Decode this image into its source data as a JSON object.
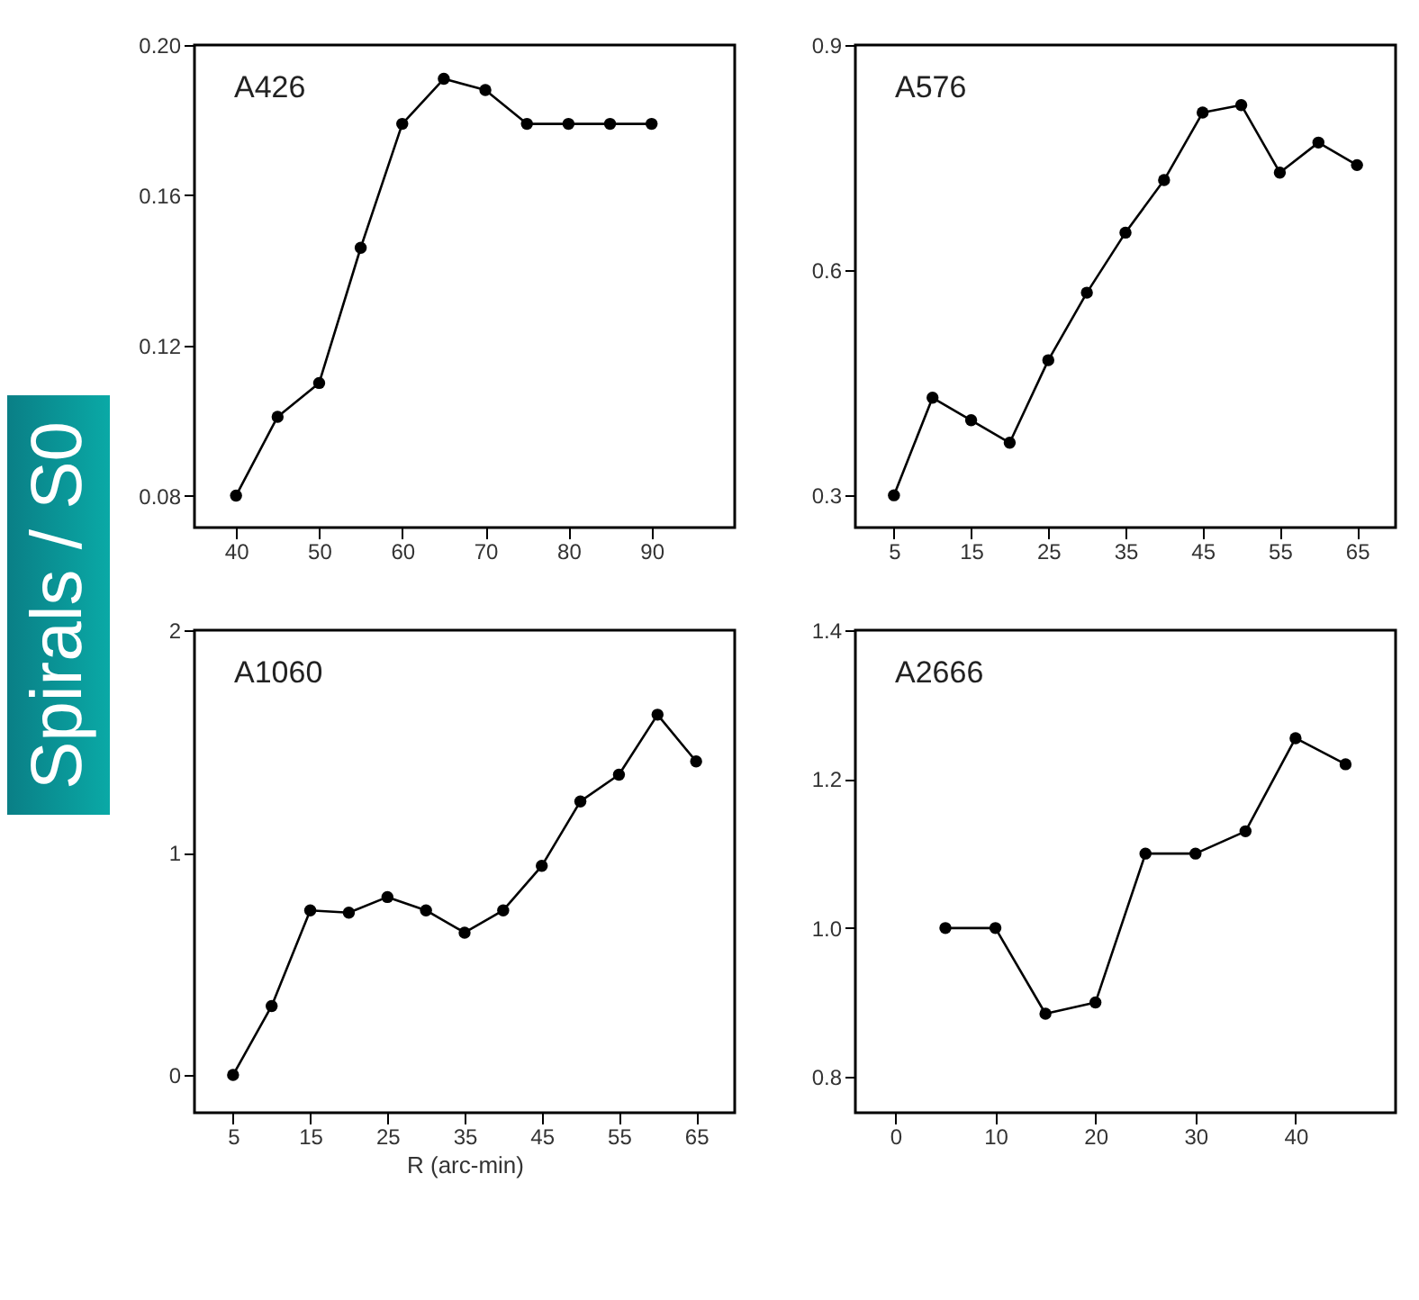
{
  "chart_data": [
    {
      "type": "line",
      "title": "A426",
      "annotations": [
        "Spirals / S0"
      ],
      "color": "#000000",
      "marker": "circle",
      "x": [
        40,
        45,
        50,
        55,
        60,
        65,
        70,
        75,
        80,
        85,
        90
      ],
      "values": [
        0.08,
        0.101,
        0.11,
        0.146,
        0.179,
        0.191,
        0.188,
        0.179,
        0.179,
        0.179,
        0.179
      ],
      "xlim": [
        35,
        100
      ],
      "xticks": [
        40,
        50,
        60,
        70,
        80,
        90
      ],
      "ylim": [
        0.0715,
        0.2
      ],
      "yticks": [
        {
          "value": 0.2,
          "label": "0.20"
        },
        0.16,
        0.12,
        0.08
      ]
    },
    {
      "type": "line",
      "title": "A576",
      "color": "#000000",
      "marker": "circle",
      "x": [
        5,
        10,
        15,
        20,
        25,
        30,
        35,
        40,
        45,
        50,
        55,
        60,
        65
      ],
      "values": [
        0.3,
        0.43,
        0.4,
        0.37,
        0.48,
        0.57,
        0.65,
        0.72,
        0.81,
        0.82,
        0.73,
        0.77,
        0.74
      ],
      "xlim": [
        0,
        70
      ],
      "xticks": [
        5,
        15,
        25,
        35,
        45,
        55,
        65
      ],
      "ylim": [
        0.257,
        0.9
      ],
      "yticks": [
        0.9,
        0.6,
        0.3
      ]
    },
    {
      "type": "line",
      "title": "A1060",
      "xlabel": "R (arc-min)",
      "color": "#000000",
      "marker": "circle",
      "x": [
        5,
        10,
        15,
        20,
        25,
        30,
        35,
        40,
        45,
        50,
        55,
        60,
        65
      ],
      "values": [
        0,
        0.31,
        0.74,
        0.73,
        0.8,
        0.74,
        0.64,
        0.74,
        0.94,
        1.23,
        1.35,
        1.62,
        1.41
      ],
      "xlim": [
        0,
        70
      ],
      "xticks": [
        5,
        15,
        25,
        35,
        45,
        55,
        65
      ],
      "ylim": [
        -0.17,
        2
      ],
      "yticks": [
        2,
        1,
        0
      ]
    },
    {
      "type": "line",
      "title": "A2666",
      "color": "#000000",
      "marker": "circle",
      "x": [
        5,
        10,
        15,
        20,
        25,
        30,
        35,
        40,
        45
      ],
      "values": [
        1.0,
        1.0,
        0.885,
        0.9,
        1.1,
        1.1,
        1.13,
        1.255,
        1.22
      ],
      "xlim": [
        -4,
        50
      ],
      "xticks": [
        0,
        10,
        20,
        30,
        40
      ],
      "ylim": [
        0.752,
        1.4
      ],
      "yticks": [
        1.4,
        1.2,
        {
          "value": 1.0,
          "label": "1.0"
        },
        0.8
      ]
    }
  ]
}
